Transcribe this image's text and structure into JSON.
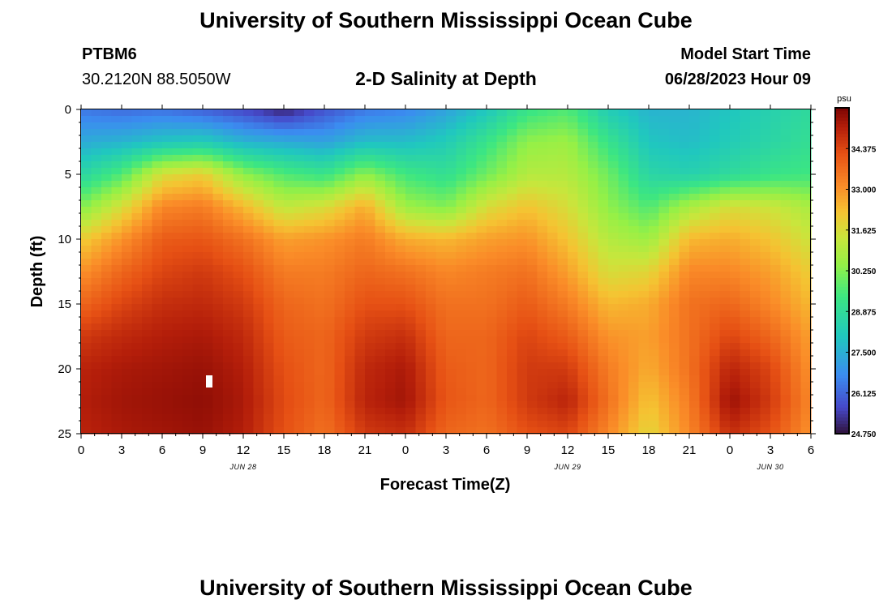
{
  "header": {
    "title": "University of Southern Mississippi Ocean Cube",
    "station_id": "PTBM6",
    "coordinates": "30.2120N  88.5050W",
    "chart_title": "2-D Salinity at Depth",
    "model_start_label": "Model Start Time",
    "model_start_value": "06/28/2023 Hour 09"
  },
  "footer": {
    "title": "University of Southern Mississippi Ocean Cube"
  },
  "chart_data": {
    "type": "heatmap",
    "title": "2-D Salinity at Depth",
    "xlabel": "Forecast Time(Z)",
    "ylabel": "Depth (ft)",
    "x_ticks": [
      "0",
      "3",
      "6",
      "9",
      "12",
      "15",
      "18",
      "21",
      "0",
      "3",
      "6",
      "9",
      "12",
      "15",
      "18",
      "21",
      "0",
      "3",
      "6"
    ],
    "x_tick_hours": [
      0,
      3,
      6,
      9,
      12,
      15,
      18,
      21,
      24,
      27,
      30,
      33,
      36,
      39,
      42,
      45,
      48,
      51,
      54
    ],
    "date_labels": [
      {
        "label": "JUN 28",
        "hour": 12
      },
      {
        "label": "JUN 29",
        "hour": 36
      },
      {
        "label": "JUN 30",
        "hour": 51
      }
    ],
    "y_ticks": [
      "0",
      "5",
      "10",
      "15",
      "20",
      "25"
    ],
    "y_tick_values": [
      0,
      5,
      10,
      15,
      20,
      25
    ],
    "xlim": [
      0,
      54
    ],
    "ylim": [
      0,
      25
    ],
    "colorbar": {
      "unit": "psu",
      "min": 24.75,
      "max": 35.75,
      "ticks": [
        "34.375",
        "33.000",
        "31.625",
        "30.250",
        "28.875",
        "27.500",
        "26.125",
        "24.750"
      ],
      "tick_values": [
        34.375,
        33.0,
        31.625,
        30.25,
        28.875,
        27.5,
        26.125,
        24.75
      ]
    },
    "salinity_psu": {
      "depths_ft": [
        0,
        2.5,
        5,
        7.5,
        10,
        12.5,
        15,
        17.5,
        20,
        22.5,
        25
      ],
      "hours": [
        0,
        3,
        6,
        9,
        12,
        15,
        18,
        21,
        24,
        27,
        30,
        33,
        36,
        39,
        42,
        45,
        48,
        51,
        54
      ],
      "rows": [
        [
          26.4,
          26.2,
          26.3,
          26.0,
          25.6,
          25.0,
          25.8,
          26.4,
          26.6,
          27.2,
          28.0,
          29.2,
          29.6,
          28.2,
          27.6,
          27.6,
          28.0,
          28.4,
          28.8
        ],
        [
          27.4,
          27.6,
          28.0,
          28.2,
          27.6,
          27.4,
          27.2,
          27.8,
          27.8,
          28.2,
          29.2,
          30.4,
          30.6,
          29.2,
          28.0,
          27.8,
          28.2,
          28.6,
          29.0
        ],
        [
          28.6,
          29.6,
          31.6,
          32.0,
          30.4,
          29.6,
          29.2,
          30.4,
          29.4,
          29.0,
          30.0,
          31.0,
          31.0,
          30.0,
          28.6,
          28.4,
          28.8,
          29.2,
          29.4
        ],
        [
          30.2,
          31.6,
          33.2,
          33.4,
          32.4,
          31.2,
          31.6,
          32.6,
          30.6,
          30.2,
          31.6,
          32.2,
          31.6,
          30.4,
          29.6,
          30.8,
          31.6,
          31.4,
          30.8
        ],
        [
          32.0,
          33.0,
          34.0,
          34.1,
          33.6,
          32.8,
          33.0,
          33.4,
          32.6,
          32.4,
          32.8,
          33.0,
          32.2,
          31.0,
          30.6,
          32.4,
          32.6,
          32.2,
          31.4
        ],
        [
          33.0,
          33.8,
          34.4,
          34.6,
          34.2,
          33.4,
          33.4,
          33.8,
          33.6,
          33.2,
          33.4,
          33.6,
          32.8,
          31.6,
          31.8,
          33.2,
          33.2,
          32.8,
          32.0
        ],
        [
          33.8,
          34.4,
          34.8,
          34.9,
          34.6,
          33.8,
          33.6,
          34.2,
          34.2,
          33.6,
          33.6,
          34.0,
          33.4,
          32.4,
          32.6,
          33.6,
          33.8,
          33.2,
          32.4
        ],
        [
          34.6,
          34.9,
          35.1,
          35.2,
          34.9,
          34.0,
          33.8,
          34.6,
          34.8,
          33.8,
          33.8,
          34.4,
          34.0,
          33.0,
          32.8,
          33.6,
          34.4,
          33.8,
          32.8
        ],
        [
          35.0,
          35.2,
          35.3,
          35.4,
          35.1,
          34.2,
          33.8,
          34.9,
          35.2,
          34.0,
          33.8,
          34.6,
          34.6,
          33.4,
          32.6,
          33.6,
          35.0,
          34.4,
          33.0
        ],
        [
          35.1,
          35.3,
          35.4,
          35.5,
          35.2,
          34.3,
          33.8,
          35.0,
          35.3,
          34.1,
          33.8,
          34.6,
          35.0,
          33.6,
          32.2,
          33.4,
          35.4,
          34.6,
          33.2
        ],
        [
          35.0,
          35.2,
          35.3,
          35.4,
          35.1,
          34.2,
          33.6,
          34.6,
          34.8,
          33.8,
          33.6,
          34.2,
          34.4,
          33.2,
          31.8,
          33.2,
          34.8,
          34.2,
          33.0
        ]
      ]
    }
  }
}
